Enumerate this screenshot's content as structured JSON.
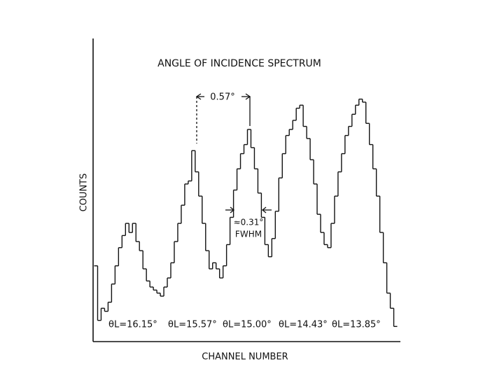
{
  "chart_data": {
    "type": "step",
    "title": "ANGLE OF INCIDENCE SPECTRUM",
    "x_label": "CHANNEL NUMBER",
    "y_label": "COUNTS",
    "color": "#111111",
    "ylim": [
      0,
      100
    ],
    "values": [
      25,
      7,
      11,
      10,
      13,
      19,
      25,
      31,
      35,
      39,
      36,
      39,
      33,
      30,
      24,
      20,
      18,
      17,
      16,
      15,
      18,
      21,
      26,
      33,
      39,
      45,
      52,
      53,
      63,
      56,
      48,
      39,
      30,
      24,
      26,
      24,
      21,
      25,
      32,
      41,
      50,
      57,
      62,
      65,
      70,
      64,
      57,
      49,
      41,
      32,
      28,
      34,
      43,
      54,
      62,
      68,
      70,
      73,
      77,
      78,
      71,
      67,
      60,
      52,
      42,
      36,
      32,
      31,
      39,
      48,
      56,
      62,
      68,
      71,
      75,
      78,
      80,
      79,
      72,
      65,
      57,
      48,
      36,
      26,
      16,
      11,
      5
    ],
    "annotations": {
      "spacing": "0.57°",
      "width": "≈0.31°",
      "width_note": "FWHM",
      "peaks": [
        "θL=16.15°",
        "θL=15.57°",
        "θL=15.00°",
        "θL=14.43°",
        "θL=13.85°"
      ]
    }
  }
}
